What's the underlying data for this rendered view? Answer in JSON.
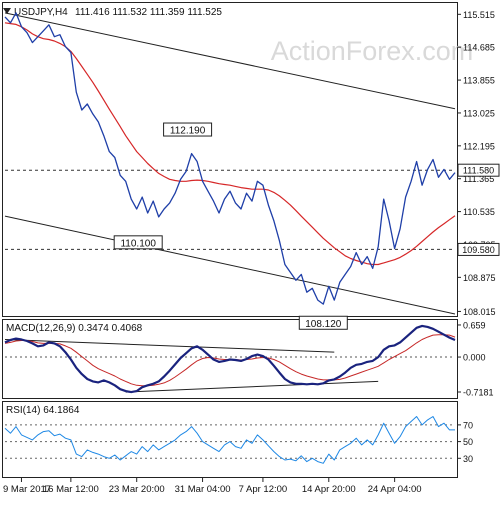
{
  "chart_data": [
    {
      "type": "line",
      "title": "USDJPY,H4",
      "ohlc_label": "111.416 111.532 111.359 111.525",
      "watermark": "ActionForex.com",
      "y_ticks": [
        "115.515",
        "114.685",
        "113.855",
        "113.025",
        "112.195",
        "111.365",
        "110.535",
        "109.705",
        "108.875",
        "108.015"
      ],
      "ylim": [
        107.95,
        115.75
      ],
      "x_ticks": [
        "9 Mar 2017",
        "16 Mar 12:00",
        "23 Mar 20:00",
        "31 Mar 04:00",
        "7 Apr 12:00",
        "14 Apr 20:00",
        "24 Apr 04:00"
      ],
      "levels": [
        {
          "label": "111.580",
          "value": 111.58
        },
        {
          "label": "109.580",
          "value": 109.58
        }
      ],
      "annotations": [
        {
          "text": "112.190",
          "value": 112.19,
          "x_index": 34
        },
        {
          "text": "110.100",
          "value": 110.1,
          "x_index": 25
        },
        {
          "text": "108.120",
          "value": 108.12,
          "x_index": 58
        }
      ],
      "series": [
        {
          "color": "#1f3fa8",
          "values": [
            115.45,
            115.3,
            115.55,
            115.2,
            115.05,
            114.8,
            114.95,
            115.1,
            115.25,
            114.95,
            115.0,
            114.7,
            114.55,
            113.55,
            113.1,
            113.25,
            113.0,
            112.8,
            112.45,
            112.05,
            111.9,
            111.45,
            111.3,
            110.85,
            110.6,
            110.9,
            110.5,
            110.8,
            110.4,
            110.6,
            110.75,
            111.0,
            111.35,
            111.55,
            112.0,
            111.8,
            111.3,
            111.05,
            110.8,
            110.5,
            110.85,
            111.05,
            110.75,
            110.6,
            111.0,
            110.8,
            111.3,
            111.2,
            110.7,
            110.3,
            109.8,
            109.2,
            109.0,
            108.8,
            108.95,
            108.5,
            108.6,
            108.3,
            108.2,
            108.65,
            108.3,
            108.75,
            108.95,
            109.15,
            109.5,
            109.2,
            109.4,
            109.1,
            109.65,
            110.85,
            110.3,
            109.6,
            110.1,
            110.9,
            111.3,
            111.8,
            111.2,
            111.6,
            111.85,
            111.4,
            111.6,
            111.35,
            111.52
          ]
        },
        {
          "color": "#d62728",
          "values": [
            115.3,
            115.28,
            115.26,
            115.2,
            115.12,
            115.02,
            114.95,
            114.9,
            114.88,
            114.84,
            114.78,
            114.7,
            114.58,
            114.4,
            114.2,
            114.0,
            113.8,
            113.58,
            113.35,
            113.12,
            112.9,
            112.68,
            112.45,
            112.25,
            112.05,
            111.9,
            111.75,
            111.62,
            111.5,
            111.42,
            111.35,
            111.32,
            111.3,
            111.3,
            111.32,
            111.33,
            111.32,
            111.3,
            111.27,
            111.24,
            111.22,
            111.2,
            111.17,
            111.14,
            111.12,
            111.1,
            111.1,
            111.1,
            111.08,
            111.02,
            110.93,
            110.82,
            110.7,
            110.56,
            110.42,
            110.28,
            110.14,
            110.0,
            109.86,
            109.74,
            109.62,
            109.52,
            109.42,
            109.35,
            109.3,
            109.26,
            109.22,
            109.2,
            109.2,
            109.24,
            109.28,
            109.32,
            109.38,
            109.46,
            109.55,
            109.66,
            109.78,
            109.9,
            110.02,
            110.13,
            110.23,
            110.33,
            110.43
          ]
        }
      ]
    },
    {
      "type": "line",
      "title": "MACD(12,26,9) 0.3474 0.4068",
      "y_ticks": [
        "0.659",
        "0.000",
        "-0.7181"
      ],
      "ylim": [
        -0.8,
        0.72
      ],
      "series": [
        {
          "color": "#1a237e",
          "values": [
            0.3,
            0.35,
            0.38,
            0.36,
            0.33,
            0.28,
            0.22,
            0.24,
            0.3,
            0.28,
            0.22,
            0.1,
            -0.05,
            -0.22,
            -0.35,
            -0.45,
            -0.5,
            -0.52,
            -0.48,
            -0.52,
            -0.58,
            -0.66,
            -0.7,
            -0.72,
            -0.7,
            -0.62,
            -0.58,
            -0.55,
            -0.5,
            -0.4,
            -0.28,
            -0.15,
            -0.02,
            0.08,
            0.18,
            0.22,
            0.15,
            0.05,
            -0.05,
            -0.1,
            -0.08,
            -0.05,
            -0.06,
            -0.08,
            -0.04,
            0.02,
            0.05,
            0.02,
            -0.05,
            -0.18,
            -0.32,
            -0.45,
            -0.52,
            -0.55,
            -0.55,
            -0.56,
            -0.55,
            -0.56,
            -0.54,
            -0.48,
            -0.46,
            -0.4,
            -0.32,
            -0.22,
            -0.16,
            -0.14,
            -0.1,
            -0.08,
            0.0,
            0.15,
            0.22,
            0.24,
            0.3,
            0.4,
            0.5,
            0.6,
            0.64,
            0.62,
            0.58,
            0.52,
            0.46,
            0.4,
            0.35
          ]
        },
        {
          "color": "#c62828",
          "values": [
            0.28,
            0.3,
            0.33,
            0.34,
            0.34,
            0.32,
            0.29,
            0.28,
            0.28,
            0.28,
            0.27,
            0.23,
            0.18,
            0.1,
            0.01,
            -0.08,
            -0.17,
            -0.24,
            -0.29,
            -0.34,
            -0.39,
            -0.45,
            -0.5,
            -0.55,
            -0.58,
            -0.59,
            -0.59,
            -0.58,
            -0.56,
            -0.53,
            -0.48,
            -0.41,
            -0.33,
            -0.25,
            -0.16,
            -0.08,
            -0.03,
            -0.01,
            -0.02,
            -0.04,
            -0.05,
            -0.05,
            -0.05,
            -0.06,
            -0.05,
            -0.04,
            -0.02,
            -0.01,
            -0.02,
            -0.05,
            -0.1,
            -0.17,
            -0.24,
            -0.3,
            -0.35,
            -0.39,
            -0.42,
            -0.45,
            -0.47,
            -0.47,
            -0.47,
            -0.46,
            -0.43,
            -0.39,
            -0.35,
            -0.31,
            -0.27,
            -0.23,
            -0.19,
            -0.12,
            -0.05,
            0.01,
            0.07,
            0.13,
            0.21,
            0.29,
            0.36,
            0.41,
            0.45,
            0.46,
            0.46,
            0.45,
            0.41
          ]
        }
      ]
    },
    {
      "type": "line",
      "title": "RSI(14) 64.1864",
      "y_ticks": [
        "70",
        "50",
        "30"
      ],
      "ylim": [
        10,
        95
      ],
      "series": [
        {
          "color": "#1e88e5",
          "values": [
            66,
            60,
            68,
            58,
            55,
            52,
            58,
            62,
            63,
            57,
            59,
            54,
            52,
            35,
            32,
            40,
            37,
            35,
            32,
            30,
            34,
            28,
            33,
            38,
            35,
            44,
            38,
            46,
            40,
            44,
            48,
            52,
            58,
            62,
            68,
            60,
            50,
            46,
            42,
            38,
            46,
            50,
            44,
            42,
            52,
            48,
            58,
            52,
            45,
            38,
            32,
            28,
            29,
            27,
            33,
            26,
            30,
            26,
            24,
            35,
            28,
            40,
            44,
            48,
            54,
            46,
            52,
            46,
            58,
            72,
            60,
            48,
            56,
            68,
            74,
            80,
            70,
            76,
            80,
            68,
            72,
            64,
            64
          ]
        }
      ]
    }
  ]
}
